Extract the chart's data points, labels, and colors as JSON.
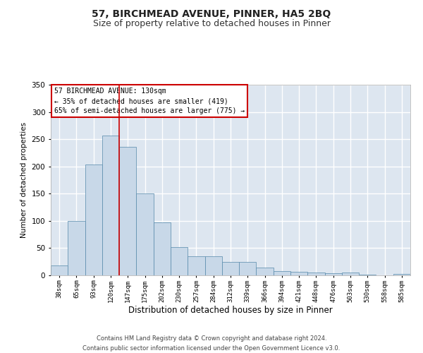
{
  "title": "57, BIRCHMEAD AVENUE, PINNER, HA5 2BQ",
  "subtitle": "Size of property relative to detached houses in Pinner",
  "xlabel": "Distribution of detached houses by size in Pinner",
  "ylabel": "Number of detached properties",
  "categories": [
    "38sqm",
    "65sqm",
    "93sqm",
    "120sqm",
    "147sqm",
    "175sqm",
    "202sqm",
    "230sqm",
    "257sqm",
    "284sqm",
    "312sqm",
    "339sqm",
    "366sqm",
    "394sqm",
    "421sqm",
    "448sqm",
    "476sqm",
    "503sqm",
    "530sqm",
    "558sqm",
    "585sqm"
  ],
  "bar_heights": [
    18,
    100,
    204,
    257,
    236,
    151,
    97,
    52,
    35,
    35,
    25,
    25,
    14,
    8,
    7,
    5,
    4,
    5,
    1,
    0,
    2
  ],
  "bar_color": "#c8d8e8",
  "bar_edge_color": "#5588aa",
  "background_color": "#dde6f0",
  "grid_color": "#ffffff",
  "annotation_box_text": "57 BIRCHMEAD AVENUE: 130sqm\n← 35% of detached houses are smaller (419)\n65% of semi-detached houses are larger (775) →",
  "annotation_box_color": "#ffffff",
  "annotation_box_edge": "#cc0000",
  "red_line_x": 3.5,
  "ylim": [
    0,
    350
  ],
  "yticks": [
    0,
    50,
    100,
    150,
    200,
    250,
    300,
    350
  ],
  "footer_text": "Contains HM Land Registry data © Crown copyright and database right 2024.\nContains public sector information licensed under the Open Government Licence v3.0.",
  "title_fontsize": 10,
  "subtitle_fontsize": 9,
  "xlabel_fontsize": 8.5,
  "ylabel_fontsize": 7.5
}
